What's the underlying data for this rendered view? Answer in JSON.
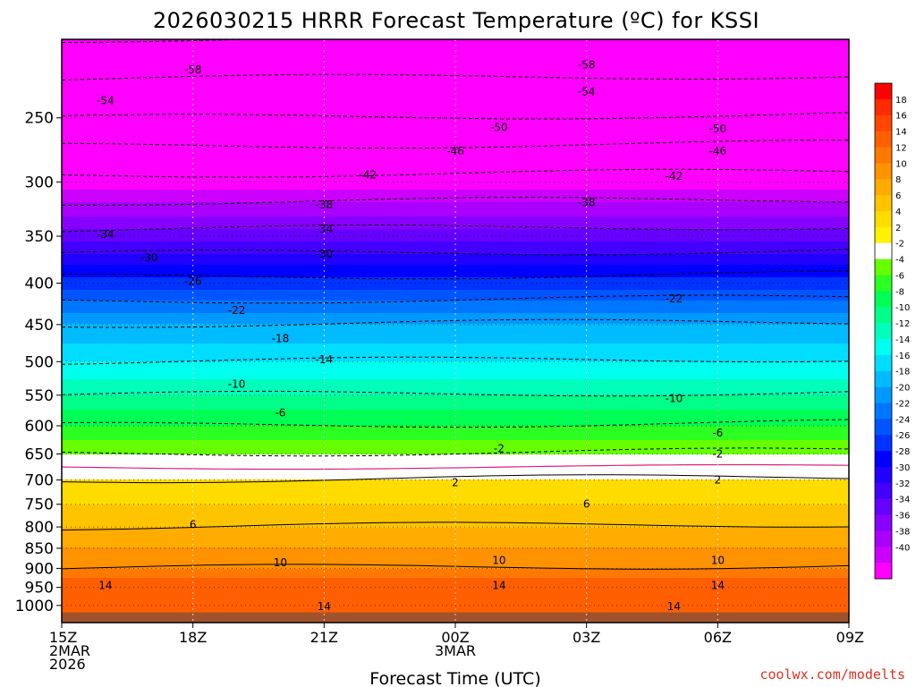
{
  "chart_data": {
    "type": "heatmap",
    "title": "2026030215 HRRR Forecast Temperature (ºC) for KSSI",
    "xlabel": "Forecast Time (UTC)",
    "ylabel": "",
    "y_scale": "log-pressure",
    "y_reversed": true,
    "ylim": [
      1050,
      200
    ],
    "y_ticks": [
      250,
      300,
      350,
      400,
      450,
      500,
      550,
      600,
      650,
      700,
      750,
      800,
      850,
      900,
      950,
      1000
    ],
    "x_ticks": [
      {
        "time": "2026-03-02 15Z",
        "lines": [
          "15Z",
          "2MAR",
          "2026"
        ]
      },
      {
        "time": "2026-03-02 18Z",
        "lines": [
          "18Z"
        ]
      },
      {
        "time": "2026-03-02 21Z",
        "lines": [
          "21Z"
        ]
      },
      {
        "time": "2026-03-03 00Z",
        "lines": [
          "00Z",
          "3MAR"
        ]
      },
      {
        "time": "2026-03-03 03Z",
        "lines": [
          "03Z"
        ]
      },
      {
        "time": "2026-03-03 06Z",
        "lines": [
          "06Z"
        ]
      },
      {
        "time": "2026-03-03 09Z",
        "lines": [
          "09Z"
        ]
      }
    ],
    "grid": true,
    "colorbar": {
      "placement": "right",
      "ticks": [
        "18",
        "16",
        "14",
        "12",
        "10",
        "8",
        "6",
        "4",
        "2",
        "-2",
        "-4",
        "-6",
        "-8",
        "-10",
        "-12",
        "-14",
        "-16",
        "-18",
        "-20",
        "-22",
        "-24",
        "-26",
        "-28",
        "-30",
        "-32",
        "-34",
        "-36",
        "-38",
        "-40"
      ],
      "colors": [
        "#ff0000",
        "#ff2a00",
        "#ff4500",
        "#ff5f00",
        "#ff7800",
        "#ff9200",
        "#ffab00",
        "#ffc400",
        "#ffdc00",
        "#fff200",
        "#ffffff",
        "#66ff00",
        "#2cff22",
        "#00ff55",
        "#00ff88",
        "#00ffbb",
        "#00ffee",
        "#00ddff",
        "#00bbff",
        "#0099ff",
        "#0077ff",
        "#0055ff",
        "#0033ff",
        "#0000ff",
        "#2200ff",
        "#4400ff",
        "#6600ff",
        "#8800ff",
        "#aa00ff",
        "#cc00ff",
        "#ff00ff"
      ]
    },
    "temperature_profile": [
      {
        "pressure": 1000,
        "temp": 14
      },
      {
        "pressure": 950,
        "temp": 14
      },
      {
        "pressure": 900,
        "temp": 10
      },
      {
        "pressure": 850,
        "temp": 8
      },
      {
        "pressure": 800,
        "temp": 6
      },
      {
        "pressure": 750,
        "temp": 4
      },
      {
        "pressure": 700,
        "temp": 2
      },
      {
        "pressure": 650,
        "temp": -2
      },
      {
        "pressure": 600,
        "temp": -6
      },
      {
        "pressure": 550,
        "temp": -10
      },
      {
        "pressure": 500,
        "temp": -14
      },
      {
        "pressure": 450,
        "temp": -18
      },
      {
        "pressure": 400,
        "temp": -25
      },
      {
        "pressure": 350,
        "temp": -33
      },
      {
        "pressure": 300,
        "temp": -41
      },
      {
        "pressure": 250,
        "temp": -50
      },
      {
        "pressure": 200,
        "temp": -58
      }
    ],
    "contour_labels": [
      {
        "text": "-58",
        "time": "2026-03-02 15Z +3h",
        "pressure": 218
      },
      {
        "text": "-58",
        "time": "2026-03-03 03Z",
        "pressure": 215
      },
      {
        "text": "-54",
        "time": "2026-03-02 16Z",
        "pressure": 238
      },
      {
        "text": "-54",
        "time": "2026-03-03 03Z",
        "pressure": 232
      },
      {
        "text": "-50",
        "time": "2026-03-03 00Z +1h",
        "pressure": 257
      },
      {
        "text": "-50",
        "time": "2026-03-03 06Z",
        "pressure": 258
      },
      {
        "text": "-46",
        "time": "2026-03-03 00Z",
        "pressure": 275
      },
      {
        "text": "-46",
        "time": "2026-03-03 06Z",
        "pressure": 275
      },
      {
        "text": "-42",
        "time": "2026-03-02 22Z",
        "pressure": 294
      },
      {
        "text": "-42",
        "time": "2026-03-03 05Z",
        "pressure": 295
      },
      {
        "text": "-38",
        "time": "2026-03-02 21Z",
        "pressure": 320
      },
      {
        "text": "-38",
        "time": "2026-03-03 03Z",
        "pressure": 318
      },
      {
        "text": "-34",
        "time": "2026-03-02 16Z",
        "pressure": 348
      },
      {
        "text": "-34",
        "time": "2026-03-02 21Z",
        "pressure": 343
      },
      {
        "text": "-30",
        "time": "2026-03-02 17Z",
        "pressure": 372
      },
      {
        "text": "-30",
        "time": "2026-03-02 21Z",
        "pressure": 368
      },
      {
        "text": "-26",
        "time": "2026-03-02 18Z",
        "pressure": 398
      },
      {
        "text": "-22",
        "time": "2026-03-02 19Z",
        "pressure": 432
      },
      {
        "text": "-22",
        "time": "2026-03-03 05Z",
        "pressure": 418
      },
      {
        "text": "-18",
        "time": "2026-03-02 20Z",
        "pressure": 468
      },
      {
        "text": "-14",
        "time": "2026-03-02 21Z",
        "pressure": 497
      },
      {
        "text": "-10",
        "time": "2026-03-02 19Z",
        "pressure": 533
      },
      {
        "text": "-10",
        "time": "2026-03-03 05Z",
        "pressure": 555
      },
      {
        "text": "-6",
        "time": "2026-03-02 20Z",
        "pressure": 578
      },
      {
        "text": "-6",
        "time": "2026-03-03 06Z",
        "pressure": 612
      },
      {
        "text": "-2",
        "time": "2026-03-03 01Z",
        "pressure": 640
      },
      {
        "text": "-2",
        "time": "2026-03-03 06Z",
        "pressure": 650
      },
      {
        "text": "2",
        "time": "2026-03-03 00Z",
        "pressure": 705
      },
      {
        "text": "2",
        "time": "2026-03-03 06Z",
        "pressure": 700
      },
      {
        "text": "6",
        "time": "2026-03-02 18Z",
        "pressure": 795
      },
      {
        "text": "6",
        "time": "2026-03-03 03Z",
        "pressure": 750
      },
      {
        "text": "10",
        "time": "2026-03-02 20Z",
        "pressure": 885
      },
      {
        "text": "10",
        "time": "2026-03-03 01Z",
        "pressure": 880
      },
      {
        "text": "10",
        "time": "2026-03-03 06Z",
        "pressure": 880
      },
      {
        "text": "14",
        "time": "2026-03-02 16Z",
        "pressure": 945
      },
      {
        "text": "14",
        "time": "2026-03-03 01Z",
        "pressure": 945
      },
      {
        "text": "14",
        "time": "2026-03-03 06Z",
        "pressure": 945
      },
      {
        "text": "14",
        "time": "2026-03-02 21Z",
        "pressure": 1003
      },
      {
        "text": "14",
        "time": "2026-03-03 05Z",
        "pressure": 1003
      }
    ]
  },
  "footer": {
    "credit": "coolwx.com/modelts"
  }
}
